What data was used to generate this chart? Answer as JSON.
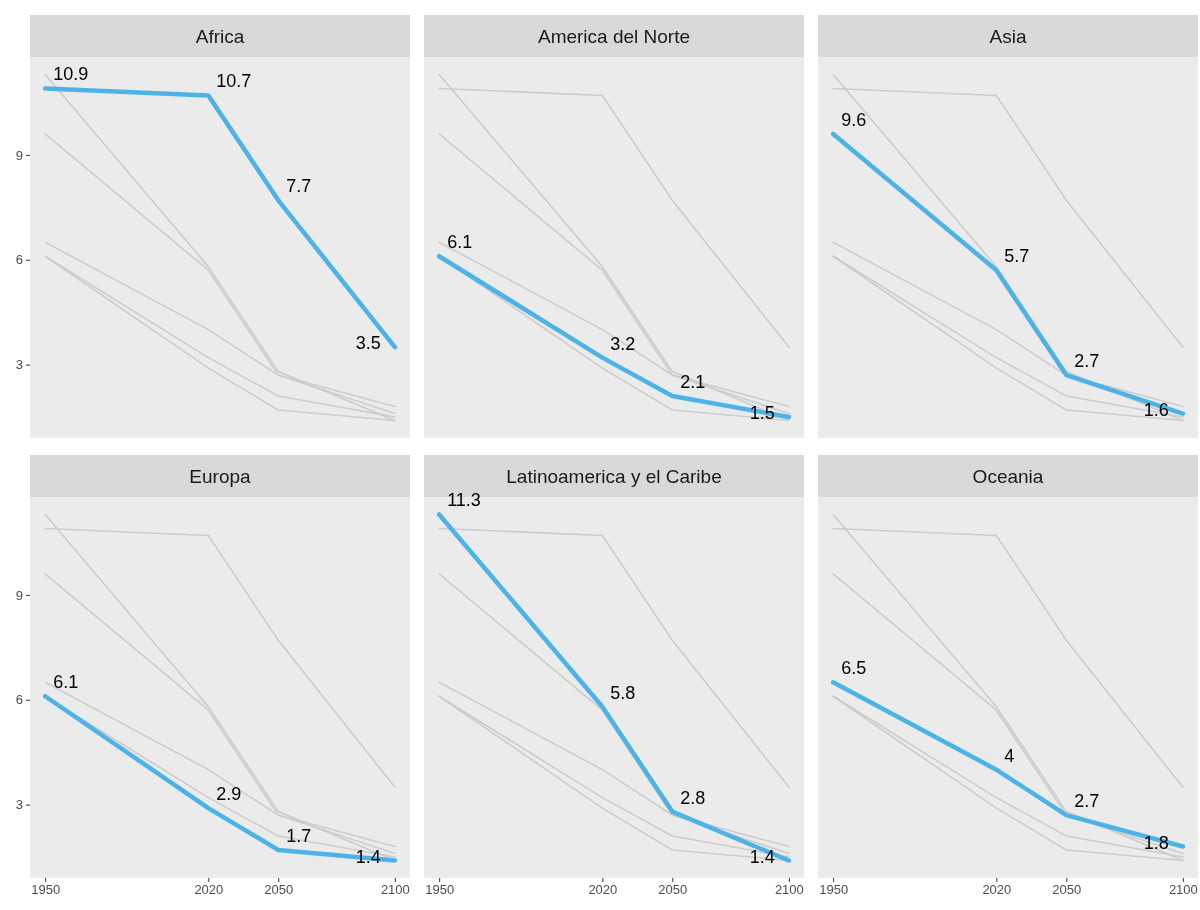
{
  "chart_data": [
    {
      "type": "line",
      "title": "Africa",
      "x": [
        1950,
        2020,
        2050,
        2100
      ],
      "xlim": [
        1943.5,
        2106.5
      ],
      "ylim": [
        0.9,
        11.8
      ],
      "yticks": [
        3,
        6,
        9
      ],
      "tick_labels": "y",
      "series": [
        {
          "color": "#cccccc",
          "values": [
            6.1,
            3.2,
            2.1,
            1.5
          ]
        },
        {
          "color": "#cccccc",
          "values": [
            9.6,
            5.7,
            2.7,
            1.6
          ]
        },
        {
          "color": "#cccccc",
          "values": [
            6.1,
            2.9,
            1.7,
            1.4
          ]
        },
        {
          "color": "#cccccc",
          "values": [
            11.3,
            5.8,
            2.8,
            1.4
          ]
        },
        {
          "color": "#cccccc",
          "values": [
            6.5,
            4,
            2.7,
            1.8
          ]
        },
        {
          "color": "#4db3e6",
          "values": [
            10.9,
            10.7,
            7.7,
            3.5
          ],
          "value_labels": [
            "10.9",
            "10.7",
            "7.7",
            "3.5"
          ]
        }
      ]
    },
    {
      "type": "line",
      "title": "America del Norte",
      "x": [
        1950,
        2020,
        2050,
        2100
      ],
      "xlim": [
        1943.5,
        2106.5
      ],
      "ylim": [
        0.9,
        11.8
      ],
      "tick_labels": false,
      "series": [
        {
          "color": "#cccccc",
          "values": [
            10.9,
            10.7,
            7.7,
            3.5
          ]
        },
        {
          "color": "#cccccc",
          "values": [
            9.6,
            5.7,
            2.7,
            1.6
          ]
        },
        {
          "color": "#cccccc",
          "values": [
            6.1,
            2.9,
            1.7,
            1.4
          ]
        },
        {
          "color": "#cccccc",
          "values": [
            11.3,
            5.8,
            2.8,
            1.4
          ]
        },
        {
          "color": "#cccccc",
          "values": [
            6.5,
            4,
            2.7,
            1.8
          ]
        },
        {
          "color": "#4db3e6",
          "values": [
            6.1,
            3.2,
            2.1,
            1.5
          ],
          "value_labels": [
            "6.1",
            "3.2",
            "2.1",
            "1.5"
          ]
        }
      ]
    },
    {
      "type": "line",
      "title": "Asia",
      "x": [
        1950,
        2020,
        2050,
        2100
      ],
      "xlim": [
        1943.5,
        2106.5
      ],
      "ylim": [
        0.9,
        11.8
      ],
      "tick_labels": false,
      "series": [
        {
          "color": "#cccccc",
          "values": [
            10.9,
            10.7,
            7.7,
            3.5
          ]
        },
        {
          "color": "#cccccc",
          "values": [
            6.1,
            3.2,
            2.1,
            1.5
          ]
        },
        {
          "color": "#cccccc",
          "values": [
            6.1,
            2.9,
            1.7,
            1.4
          ]
        },
        {
          "color": "#cccccc",
          "values": [
            11.3,
            5.8,
            2.8,
            1.4
          ]
        },
        {
          "color": "#cccccc",
          "values": [
            6.5,
            4,
            2.7,
            1.8
          ]
        },
        {
          "color": "#4db3e6",
          "values": [
            9.6,
            5.7,
            2.7,
            1.6
          ],
          "value_labels": [
            "9.6",
            "5.7",
            "2.7",
            "1.6"
          ]
        }
      ]
    },
    {
      "type": "line",
      "title": "Europa",
      "x": [
        1950,
        2020,
        2050,
        2100
      ],
      "xlim": [
        1943.5,
        2106.5
      ],
      "ylim": [
        0.9,
        11.8
      ],
      "xticks": [
        1950,
        2020,
        2050,
        2100
      ],
      "yticks": [
        3,
        6,
        9
      ],
      "series": [
        {
          "color": "#cccccc",
          "values": [
            10.9,
            10.7,
            7.7,
            3.5
          ]
        },
        {
          "color": "#cccccc",
          "values": [
            6.1,
            3.2,
            2.1,
            1.5
          ]
        },
        {
          "color": "#cccccc",
          "values": [
            9.6,
            5.7,
            2.7,
            1.6
          ]
        },
        {
          "color": "#cccccc",
          "values": [
            11.3,
            5.8,
            2.8,
            1.4
          ]
        },
        {
          "color": "#cccccc",
          "values": [
            6.5,
            4,
            2.7,
            1.8
          ]
        },
        {
          "color": "#4db3e6",
          "values": [
            6.1,
            2.9,
            1.7,
            1.4
          ],
          "value_labels": [
            "6.1",
            "2.9",
            "1.7",
            "1.4"
          ]
        }
      ]
    },
    {
      "type": "line",
      "title": "Latinoamerica y el Caribe",
      "x": [
        1950,
        2020,
        2050,
        2100
      ],
      "xlim": [
        1943.5,
        2106.5
      ],
      "ylim": [
        0.9,
        11.8
      ],
      "xticks": [
        1950,
        2020,
        2050,
        2100
      ],
      "tick_labels": "x",
      "series": [
        {
          "color": "#cccccc",
          "values": [
            10.9,
            10.7,
            7.7,
            3.5
          ]
        },
        {
          "color": "#cccccc",
          "values": [
            6.1,
            3.2,
            2.1,
            1.5
          ]
        },
        {
          "color": "#cccccc",
          "values": [
            9.6,
            5.7,
            2.7,
            1.6
          ]
        },
        {
          "color": "#cccccc",
          "values": [
            6.1,
            2.9,
            1.7,
            1.4
          ]
        },
        {
          "color": "#cccccc",
          "values": [
            6.5,
            4,
            2.7,
            1.8
          ]
        },
        {
          "color": "#4db3e6",
          "values": [
            11.3,
            5.8,
            2.8,
            1.4
          ],
          "value_labels": [
            "11.3",
            "5.8",
            "2.8",
            "1.4"
          ]
        }
      ]
    },
    {
      "type": "line",
      "title": "Oceania",
      "x": [
        1950,
        2020,
        2050,
        2100
      ],
      "xlim": [
        1943.5,
        2106.5
      ],
      "ylim": [
        0.9,
        11.8
      ],
      "xticks": [
        1950,
        2020,
        2050,
        2100
      ],
      "tick_labels": "x",
      "series": [
        {
          "color": "#cccccc",
          "values": [
            10.9,
            10.7,
            7.7,
            3.5
          ]
        },
        {
          "color": "#cccccc",
          "values": [
            6.1,
            3.2,
            2.1,
            1.5
          ]
        },
        {
          "color": "#cccccc",
          "values": [
            9.6,
            5.7,
            2.7,
            1.6
          ]
        },
        {
          "color": "#cccccc",
          "values": [
            6.1,
            2.9,
            1.7,
            1.4
          ]
        },
        {
          "color": "#cccccc",
          "values": [
            11.3,
            5.8,
            2.8,
            1.4
          ]
        },
        {
          "color": "#4db3e6",
          "values": [
            6.5,
            4,
            2.7,
            1.8
          ],
          "value_labels": [
            "6.5",
            "4",
            "2.7",
            "1.8"
          ]
        }
      ]
    }
  ]
}
